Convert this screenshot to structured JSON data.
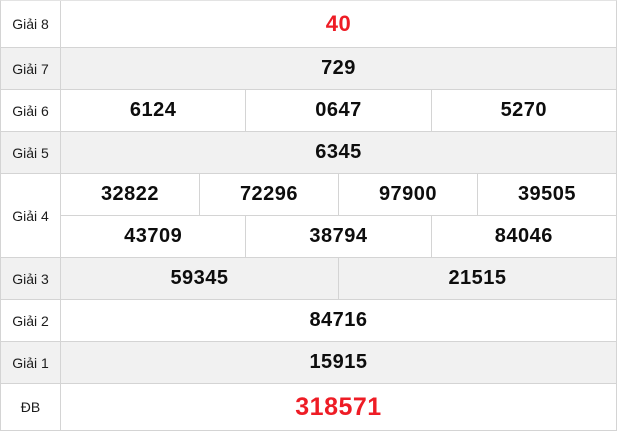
{
  "colors": {
    "highlight_red": "#ee1c25",
    "row_alt_bg": "#f1f1f1",
    "border": "#d4d4d4"
  },
  "table": {
    "name": "lottery-results",
    "rows": [
      {
        "label": "Giải 8",
        "highlight": true,
        "cells": [
          [
            "40"
          ]
        ]
      },
      {
        "label": "Giải 7",
        "highlight": false,
        "cells": [
          [
            "729"
          ]
        ]
      },
      {
        "label": "Giải 6",
        "highlight": false,
        "cells": [
          [
            "6124",
            "0647",
            "5270"
          ]
        ]
      },
      {
        "label": "Giải 5",
        "highlight": false,
        "cells": [
          [
            "6345"
          ]
        ]
      },
      {
        "label": "Giải 4",
        "highlight": false,
        "cells": [
          [
            "32822",
            "72296",
            "97900",
            "39505"
          ],
          [
            "43709",
            "38794",
            "84046"
          ]
        ]
      },
      {
        "label": "Giải 3",
        "highlight": false,
        "cells": [
          [
            "59345",
            "21515"
          ]
        ]
      },
      {
        "label": "Giải 2",
        "highlight": false,
        "cells": [
          [
            "84716"
          ]
        ]
      },
      {
        "label": "Giải 1",
        "highlight": false,
        "cells": [
          [
            "15915"
          ]
        ]
      },
      {
        "label": "ĐB",
        "highlight": true,
        "cells": [
          [
            "318571"
          ]
        ]
      }
    ]
  }
}
